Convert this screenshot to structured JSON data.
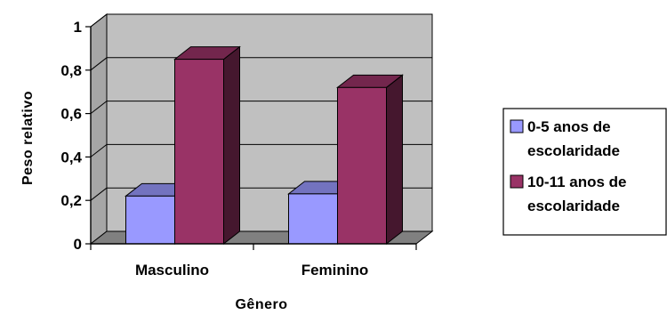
{
  "chart_data": {
    "type": "bar",
    "style": "3d-clustered-column",
    "categories": [
      "Masculino",
      "Feminino"
    ],
    "series": [
      {
        "name": "0-5 anos de escolaridade",
        "values": [
          0.22,
          0.23
        ],
        "color": "#9999ff"
      },
      {
        "name": "10-11 anos de escolaridade",
        "values": [
          0.85,
          0.72
        ],
        "color": "#993366"
      }
    ],
    "y_ticks": [
      "0",
      "0,2",
      "0,4",
      "0,6",
      "0,8",
      "1"
    ],
    "ylim": [
      0,
      1
    ],
    "xlabel": "Gênero",
    "ylabel": "Peso relativo",
    "grid": true,
    "wall_color": "#c0c0c0",
    "legend": {
      "placement": "right",
      "entries": [
        {
          "line1": "0-5 anos de",
          "line2": "escolaridade"
        },
        {
          "line1": "10-11 anos de",
          "line2": "escolaridade"
        }
      ]
    }
  }
}
